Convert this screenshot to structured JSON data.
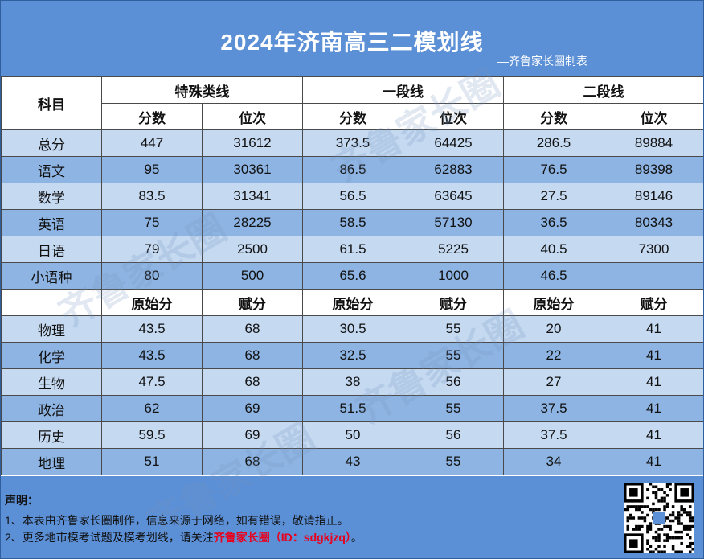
{
  "header": {
    "title": "2024年济南高三二模划线",
    "subtitle": "—齐鲁家长圈制表"
  },
  "table": {
    "corner_label": "科目",
    "groups": [
      "特殊类线",
      "一段线",
      "二段线"
    ],
    "sub_headers": [
      "分数",
      "位次",
      "分数",
      "位次",
      "分数",
      "位次"
    ],
    "score_rows": [
      {
        "subject": "总分",
        "values": [
          "447",
          "31612",
          "373.5",
          "64425",
          "286.5",
          "89884"
        ]
      },
      {
        "subject": "语文",
        "values": [
          "95",
          "30361",
          "86.5",
          "62883",
          "76.5",
          "89398"
        ]
      },
      {
        "subject": "数学",
        "values": [
          "83.5",
          "31341",
          "56.5",
          "63645",
          "27.5",
          "89146"
        ]
      },
      {
        "subject": "英语",
        "values": [
          "75",
          "28225",
          "58.5",
          "57130",
          "36.5",
          "80343"
        ]
      },
      {
        "subject": "日语",
        "values": [
          "79",
          "2500",
          "61.5",
          "5225",
          "40.5",
          "7300"
        ]
      },
      {
        "subject": "小语种",
        "values": [
          "80",
          "500",
          "65.6",
          "1000",
          "46.5",
          ""
        ]
      }
    ],
    "sub_headers_2": [
      "原始分",
      "赋分",
      "原始分",
      "赋分",
      "原始分",
      "赋分"
    ],
    "elective_rows": [
      {
        "subject": "物理",
        "values": [
          "43.5",
          "68",
          "30.5",
          "55",
          "20",
          "41"
        ]
      },
      {
        "subject": "化学",
        "values": [
          "43.5",
          "68",
          "32.5",
          "55",
          "22",
          "41"
        ]
      },
      {
        "subject": "生物",
        "values": [
          "47.5",
          "68",
          "38",
          "56",
          "27",
          "41"
        ]
      },
      {
        "subject": "政治",
        "values": [
          "62",
          "69",
          "51.5",
          "55",
          "37.5",
          "41"
        ]
      },
      {
        "subject": "历史",
        "values": [
          "59.5",
          "69",
          "50",
          "56",
          "37.5",
          "41"
        ]
      },
      {
        "subject": "地理",
        "values": [
          "51",
          "68",
          "43",
          "55",
          "34",
          "41"
        ]
      }
    ]
  },
  "footer": {
    "statement_title": "声明：",
    "line1": "1、本表由齐鲁家长圈制作，信息来源于网络，如有错误，敬请指正。",
    "line2_prefix": "2、更多地市模考试题及模考划线，请关注",
    "line2_highlight": "齐鲁家长圈（ID：sdgkjzq）",
    "line2_suffix": "。"
  },
  "watermark": {
    "text": "齐鲁家长圈"
  },
  "colors": {
    "header_bg": "#5b8fd6",
    "row_light": "#c5d9f1",
    "row_dark": "#8db4e2",
    "highlight": "#e8001c"
  }
}
